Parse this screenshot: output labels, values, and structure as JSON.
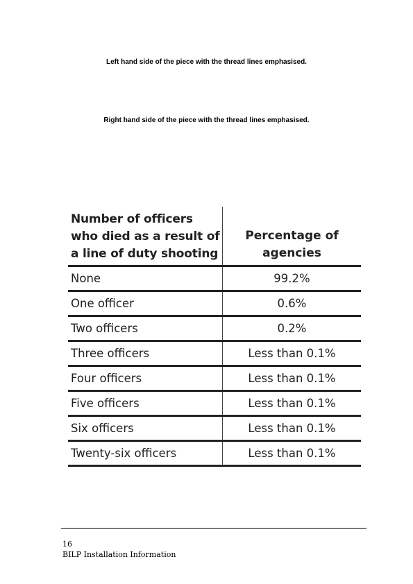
{
  "captions": {
    "left": "Left hand side of the piece with the thread lines emphasised.",
    "right": "Right hand side of the piece with the thread lines emphasised."
  },
  "table": {
    "header": {
      "col1": "Number of officers who died as a result of a line of duty shooting",
      "col2": "Percentage of agencies"
    },
    "rows": [
      {
        "officers": "None",
        "percentage": "99.2%"
      },
      {
        "officers": "One officer",
        "percentage": "0.6%"
      },
      {
        "officers": "Two officers",
        "percentage": "0.2%"
      },
      {
        "officers": "Three officers",
        "percentage": "Less than 0.1%"
      },
      {
        "officers": "Four officers",
        "percentage": "Less than 0.1%"
      },
      {
        "officers": "Five officers",
        "percentage": "Less than 0.1%"
      },
      {
        "officers": "Six officers",
        "percentage": "Less than 0.1%"
      },
      {
        "officers": "Twenty-six officers",
        "percentage": "Less than 0.1%"
      }
    ]
  },
  "footer": {
    "page_number": "16",
    "title": "BILP Installation Information"
  }
}
